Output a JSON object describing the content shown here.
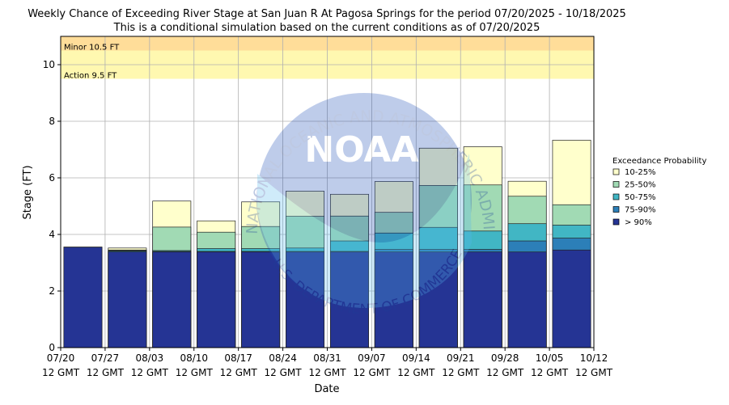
{
  "chart_data": {
    "type": "bar",
    "title": "Weekly Chance of Exceeding River Stage at San Juan R At Pagosa Springs for the period 07/20/2025 - 10/18/2025",
    "subtitle": "This is a conditional simulation based on the current conditions as of 07/20/2025",
    "xlabel": "Date",
    "ylabel": "Stage (FT)",
    "ylim": [
      0,
      11
    ],
    "yticks": [
      0,
      2,
      4,
      6,
      8,
      10
    ],
    "grid": true,
    "x_ticks": [
      {
        "date": "07/20",
        "time": "12 GMT"
      },
      {
        "date": "07/27",
        "time": "12 GMT"
      },
      {
        "date": "08/03",
        "time": "12 GMT"
      },
      {
        "date": "08/10",
        "time": "12 GMT"
      },
      {
        "date": "08/17",
        "time": "12 GMT"
      },
      {
        "date": "08/24",
        "time": "12 GMT"
      },
      {
        "date": "08/31",
        "time": "12 GMT"
      },
      {
        "date": "09/07",
        "time": "12 GMT"
      },
      {
        "date": "09/14",
        "time": "12 GMT"
      },
      {
        "date": "09/21",
        "time": "12 GMT"
      },
      {
        "date": "09/28",
        "time": "12 GMT"
      },
      {
        "date": "10/05",
        "time": "12 GMT"
      },
      {
        "date": "10/12",
        "time": "12 GMT"
      }
    ],
    "categories": [
      "07/20",
      "07/27",
      "08/03",
      "08/10",
      "08/17",
      "08/24",
      "08/31",
      "09/07",
      "09/14",
      "09/21",
      "09/28",
      "10/05"
    ],
    "series": [
      {
        "name": "> 90%",
        "color": "#253494",
        "values": [
          3.55,
          3.38,
          3.38,
          3.38,
          3.38,
          3.38,
          3.38,
          3.38,
          3.38,
          3.38,
          3.38,
          3.45
        ]
      },
      {
        "name": "75-90%",
        "color": "#2c7fb8",
        "values": [
          3.55,
          3.41,
          3.4,
          3.4,
          3.4,
          3.4,
          3.4,
          3.47,
          3.47,
          3.47,
          3.77,
          3.87
        ]
      },
      {
        "name": "50-75%",
        "color": "#41b6c4",
        "values": [
          3.55,
          3.43,
          3.43,
          3.5,
          3.5,
          3.52,
          3.77,
          4.05,
          4.25,
          4.12,
          4.38,
          4.33
        ]
      },
      {
        "name": "25-50%",
        "color": "#a1dab4",
        "values": [
          3.55,
          3.45,
          4.26,
          4.08,
          4.28,
          4.64,
          4.65,
          4.78,
          5.73,
          5.75,
          5.35,
          5.05
        ]
      },
      {
        "name": "10-25%",
        "color": "#ffffcc",
        "values": [
          3.55,
          3.52,
          5.18,
          4.48,
          5.15,
          5.53,
          5.42,
          5.87,
          7.05,
          7.1,
          5.88,
          7.33
        ]
      }
    ],
    "thresholds": [
      {
        "label": "Minor 10.5 FT",
        "value": 10.5,
        "color": "#ffdd99"
      },
      {
        "label": "Action 9.5 FT",
        "value": 9.5,
        "color": "#fff8b0"
      }
    ],
    "legend": {
      "title": "Exceedance Probability",
      "position": "right",
      "entries": [
        "10-25%",
        "25-50%",
        "50-75%",
        "75-90%",
        "> 90%"
      ]
    }
  },
  "watermark": {
    "text_top": "NATIONAL OCEANIC AND ATMOSPHERIC ADMINISTRATION",
    "text_bottom": "U.S. DEPARTMENT OF COMMERCE",
    "logo_text": "NOAA"
  }
}
